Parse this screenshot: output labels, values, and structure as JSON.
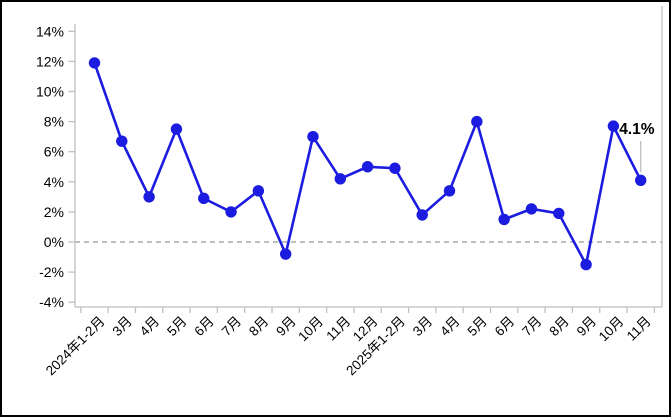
{
  "chart_data": {
    "type": "line",
    "title": "",
    "categories": [
      "2024年1-2月",
      "3月",
      "4月",
      "5月",
      "6月",
      "7月",
      "8月",
      "9月",
      "10月",
      "11月",
      "12月",
      "2025年1-2月",
      "3月",
      "4月",
      "5月",
      "6月",
      "7月",
      "8月",
      "9月",
      "10月",
      "11月"
    ],
    "values": [
      11.9,
      6.7,
      3.0,
      7.5,
      2.9,
      2.0,
      3.4,
      -0.8,
      7.0,
      4.2,
      5.0,
      4.9,
      1.8,
      3.4,
      8.0,
      1.5,
      2.2,
      1.9,
      -1.5,
      7.7,
      4.1
    ],
    "unit": "%",
    "xlabel": "",
    "ylabel": "",
    "ylim": [
      -4,
      14
    ],
    "ytick_step": 2,
    "ytick_values": [
      14,
      12,
      10,
      8,
      6,
      4,
      2,
      0,
      -2,
      -4
    ],
    "ytick_labels": [
      "14%",
      "12%",
      "10%",
      "8%",
      "6%",
      "4%",
      "2%",
      "0%",
      "-2%",
      "-4%"
    ],
    "grid": "off",
    "legend_position": "none",
    "zero_line_style": "dashed",
    "x_label_rotation_deg": 45,
    "annotation": {
      "text": "4.1%",
      "target_index": 20
    }
  },
  "colors": {
    "series_line": "#1c1ce0",
    "marker": "#1c1ce0",
    "zero_dash": "#a8a8a8",
    "axis": "#bfbfbf",
    "text": "#000000",
    "leader": "#bfbfbf",
    "border": "#000000",
    "background": "#ffffff"
  }
}
